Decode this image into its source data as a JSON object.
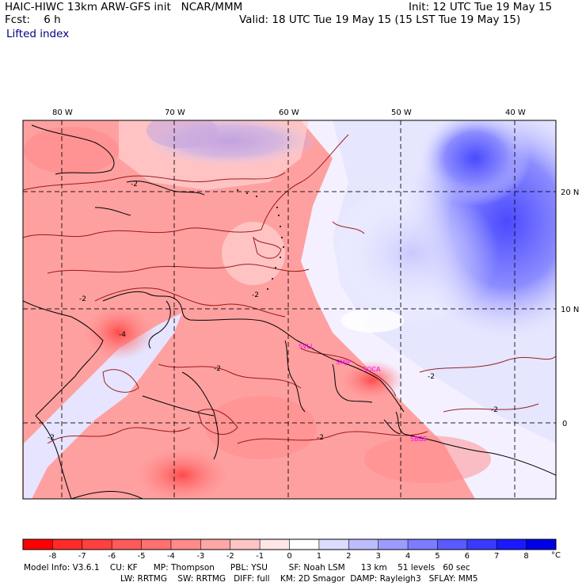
{
  "header": {
    "title": "HAIC-HIWC 13km ARW-GFS init   NCAR/MMM",
    "forecast": "Fcst:    6 h",
    "init": "Init: 12 UTC Tue 19 May 15",
    "valid": "Valid: 18 UTC Tue 19 May 15 (15 LST Tue 19 May 15)",
    "field": "Lifted index"
  },
  "map": {
    "lon_labels": [
      "80 W",
      "70 W",
      "60 W",
      "50 W",
      "40 W"
    ],
    "lat_labels": [
      "20 N",
      "10 N",
      "0"
    ],
    "contour_labels": [
      "-2",
      "-2",
      "-2",
      "-4",
      "-2",
      "-2",
      "-2",
      "-2",
      "-2"
    ],
    "stations": [
      "SVLL",
      "SMJP",
      "SOCA",
      "SBBE"
    ],
    "station_color": "#ff00ff"
  },
  "colorbar": {
    "ticks": [
      "-8",
      "-7",
      "-6",
      "-5",
      "-4",
      "-3",
      "-2",
      "-1",
      "0",
      "1",
      "2",
      "3",
      "4",
      "5",
      "6",
      "7",
      "8"
    ],
    "unit": "°C",
    "colors": [
      "#ff0000",
      "#ff2a2a",
      "#ff4040",
      "#ff5a5a",
      "#ff7070",
      "#ff8a8a",
      "#ffa6a6",
      "#ffc4c4",
      "#ffe6e6",
      "#ffffff",
      "#dcdcff",
      "#bcbcff",
      "#9c9cff",
      "#7c7cff",
      "#5a5aff",
      "#3a3aff",
      "#1a1aff",
      "#0000e6"
    ]
  },
  "model_info": {
    "line1": "Model Info: V3.6.1    CU: KF      MP: Thompson      PBL: YSU        SF: Noah LSM      13 km    51 levels   60 sec",
    "line2": "LW: RRTMG    SW: RRTMG   DIFF: full    KM: 2D Smagor  DAMP: Rayleigh3   SFLAY: MM5"
  }
}
